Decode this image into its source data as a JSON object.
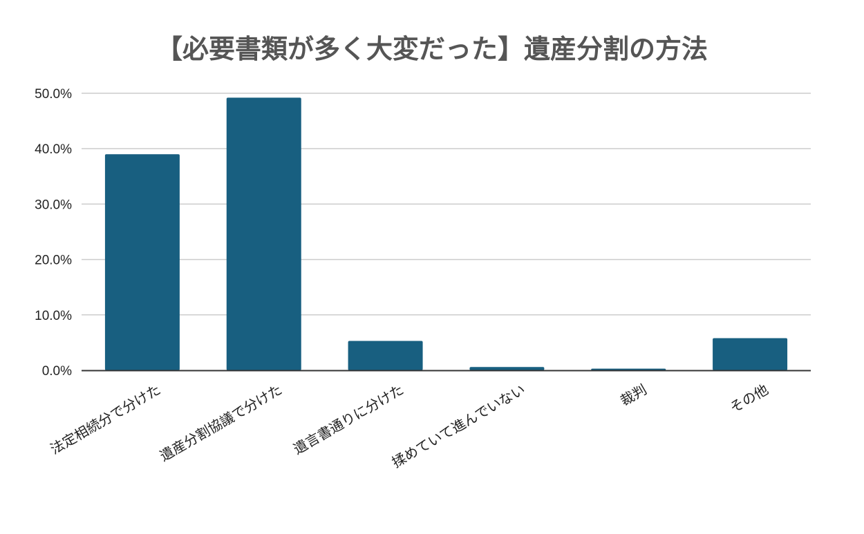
{
  "chart_data": {
    "type": "bar",
    "title": "【必要書類が多く大変だった】遺産分割の方法",
    "xlabel": "",
    "ylabel": "",
    "categories": [
      "法定相続分で分けた",
      "遺産分割協議で分けた",
      "遺言書通りに分けた",
      "揉めていて進んでいない",
      "裁判",
      "その他"
    ],
    "values": [
      39.0,
      49.2,
      5.3,
      0.6,
      0.3,
      5.8
    ],
    "ylim": [
      0,
      50
    ],
    "yticks": [
      "0.0%",
      "10.0%",
      "20.0%",
      "30.0%",
      "40.0%",
      "50.0%"
    ],
    "ytick_values": [
      0,
      10,
      20,
      30,
      40,
      50
    ],
    "grid": true,
    "legend": "none",
    "bar_color": "#185f80",
    "grid_color": "#cccccc",
    "axis_color": "#333333"
  }
}
